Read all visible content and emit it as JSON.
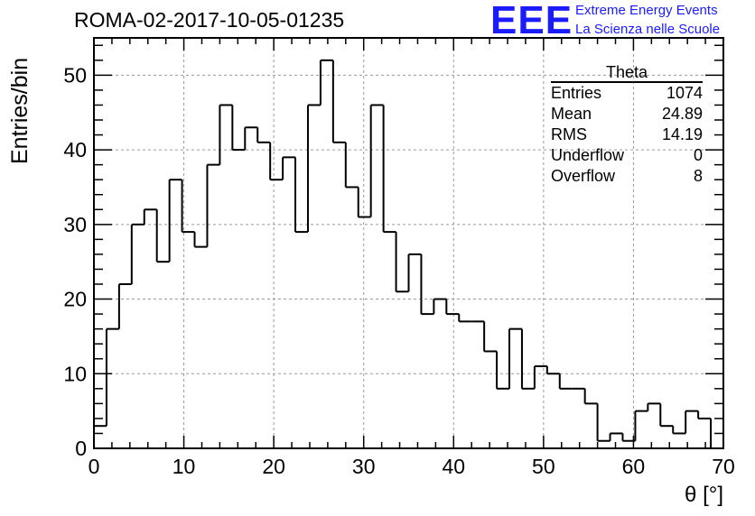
{
  "header": {
    "run_title": "ROMA-02-2017-10-05-01235",
    "logo_text": "EEE",
    "logo_line1": "Extreme Energy Events",
    "logo_line2": "La Scienza nelle Scuole",
    "logo_color": "#1b1bff"
  },
  "stats_box": {
    "title": "Theta",
    "rows": [
      {
        "label": "Entries",
        "value": "1074"
      },
      {
        "label": "Mean",
        "value": "24.89"
      },
      {
        "label": "RMS",
        "value": "14.19"
      },
      {
        "label": "Underflow",
        "value": "0"
      },
      {
        "label": "Overflow",
        "value": "8"
      }
    ]
  },
  "chart_data": {
    "type": "bar",
    "style": "step-histogram",
    "xlabel": "θ [°]",
    "ylabel": "Entries/bin",
    "xlim": [
      0,
      70
    ],
    "ylim": [
      0,
      55
    ],
    "grid": true,
    "bin_width": 1.4,
    "x_ticks": [
      "0",
      "10",
      "20",
      "30",
      "40",
      "50",
      "60",
      "70"
    ],
    "y_ticks": [
      "0",
      "10",
      "20",
      "30",
      "40",
      "50"
    ],
    "x_tick_values": [
      0,
      10,
      20,
      30,
      40,
      50,
      60,
      70
    ],
    "y_tick_values": [
      0,
      10,
      20,
      30,
      40,
      50
    ],
    "values": [
      3,
      16,
      22,
      30,
      32,
      25,
      36,
      29,
      27,
      38,
      46,
      40,
      43,
      41,
      36,
      39,
      29,
      46,
      52,
      41,
      35,
      31,
      46,
      29,
      21,
      26,
      18,
      20,
      18,
      17,
      17,
      13,
      8,
      16,
      8,
      11,
      10,
      8,
      8,
      6,
      1,
      2,
      1,
      5,
      6,
      3,
      2,
      5,
      4,
      0
    ]
  }
}
